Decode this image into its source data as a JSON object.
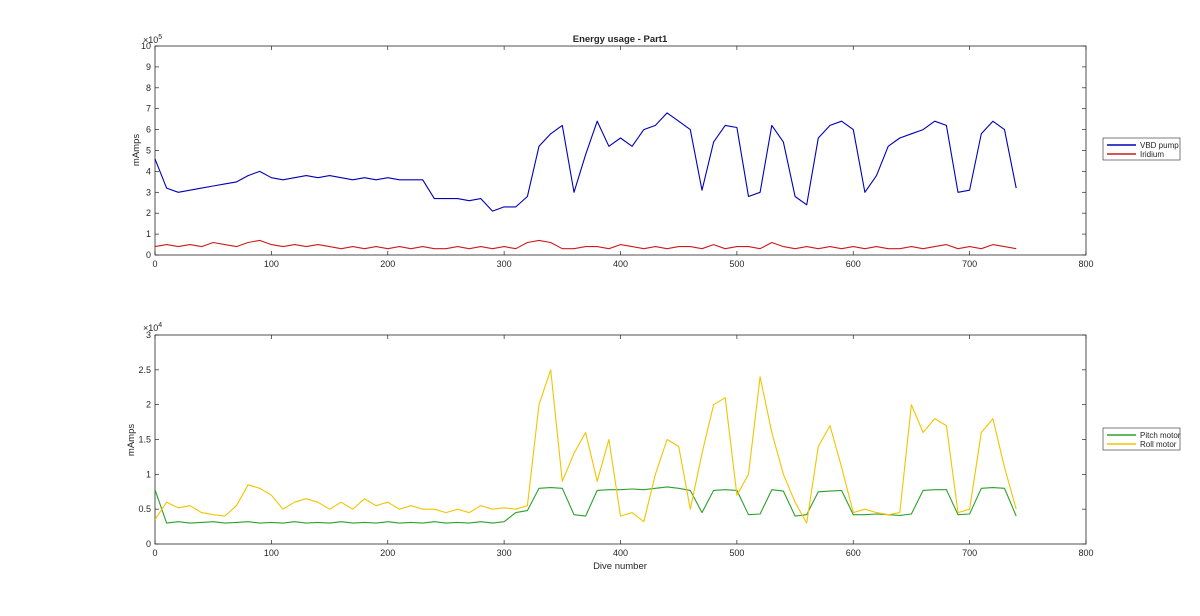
{
  "colors": {
    "vbd": "#0000b8",
    "iridium": "#cc1a1a",
    "pitch": "#2ca02c",
    "roll": "#f2c400",
    "axis": "#262626"
  },
  "chart_data": [
    {
      "type": "line",
      "title": "Energy usage - Part1",
      "xlabel": "",
      "ylabel": "mAmps",
      "xlim": [
        0,
        800
      ],
      "ylim": [
        0,
        1000000
      ],
      "x_ticks": [
        0,
        100,
        200,
        300,
        400,
        500,
        600,
        700,
        800
      ],
      "y_ticks": [
        0,
        1,
        2,
        3,
        4,
        5,
        6,
        7,
        8,
        9,
        10
      ],
      "y_multiplier": "×10",
      "y_exponent": "5",
      "legend_position": "right",
      "grid": false,
      "x": [
        0,
        10,
        20,
        30,
        40,
        50,
        60,
        70,
        80,
        90,
        100,
        110,
        120,
        130,
        140,
        150,
        160,
        170,
        180,
        190,
        200,
        210,
        220,
        230,
        240,
        250,
        260,
        270,
        280,
        290,
        300,
        310,
        320,
        330,
        340,
        350,
        360,
        370,
        380,
        390,
        400,
        410,
        420,
        430,
        440,
        450,
        460,
        470,
        480,
        490,
        500,
        510,
        520,
        530,
        540,
        550,
        560,
        570,
        580,
        590,
        600,
        610,
        620,
        630,
        640,
        650,
        660,
        670,
        680,
        690,
        700,
        710,
        720,
        730,
        740
      ],
      "series": [
        {
          "name": "VBD pump",
          "values": [
            460000,
            320000,
            300000,
            310000,
            320000,
            330000,
            340000,
            350000,
            380000,
            400000,
            370000,
            360000,
            370000,
            380000,
            370000,
            380000,
            370000,
            360000,
            370000,
            360000,
            370000,
            360000,
            360000,
            360000,
            270000,
            270000,
            270000,
            260000,
            270000,
            210000,
            230000,
            230000,
            280000,
            520000,
            580000,
            620000,
            300000,
            480000,
            640000,
            520000,
            560000,
            520000,
            600000,
            620000,
            680000,
            640000,
            600000,
            310000,
            540000,
            620000,
            610000,
            280000,
            300000,
            620000,
            540000,
            280000,
            240000,
            560000,
            620000,
            640000,
            600000,
            300000,
            380000,
            520000,
            560000,
            580000,
            600000,
            640000,
            620000,
            300000,
            310000,
            580000,
            640000,
            600000,
            320000
          ]
        },
        {
          "name": "Iridium",
          "values": [
            40000,
            50000,
            40000,
            50000,
            40000,
            60000,
            50000,
            40000,
            60000,
            70000,
            50000,
            40000,
            50000,
            40000,
            50000,
            40000,
            30000,
            40000,
            30000,
            40000,
            30000,
            40000,
            30000,
            40000,
            30000,
            30000,
            40000,
            30000,
            40000,
            30000,
            40000,
            30000,
            60000,
            70000,
            60000,
            30000,
            30000,
            40000,
            40000,
            30000,
            50000,
            40000,
            30000,
            40000,
            30000,
            40000,
            40000,
            30000,
            50000,
            30000,
            40000,
            40000,
            30000,
            60000,
            40000,
            30000,
            40000,
            30000,
            40000,
            30000,
            40000,
            30000,
            40000,
            30000,
            30000,
            40000,
            30000,
            40000,
            50000,
            30000,
            40000,
            30000,
            50000,
            40000,
            30000
          ]
        }
      ]
    },
    {
      "type": "line",
      "title": "",
      "xlabel": "Dive number",
      "ylabel": "mAmps",
      "xlim": [
        0,
        800
      ],
      "ylim": [
        0,
        30000
      ],
      "x_ticks": [
        0,
        100,
        200,
        300,
        400,
        500,
        600,
        700,
        800
      ],
      "y_ticks": [
        0,
        0.5,
        1,
        1.5,
        2,
        2.5,
        3
      ],
      "y_multiplier": "×10",
      "y_exponent": "4",
      "legend_position": "right",
      "grid": false,
      "x": [
        0,
        10,
        20,
        30,
        40,
        50,
        60,
        70,
        80,
        90,
        100,
        110,
        120,
        130,
        140,
        150,
        160,
        170,
        180,
        190,
        200,
        210,
        220,
        230,
        240,
        250,
        260,
        270,
        280,
        290,
        300,
        310,
        320,
        330,
        340,
        350,
        360,
        370,
        380,
        390,
        400,
        410,
        420,
        430,
        440,
        450,
        460,
        470,
        480,
        490,
        500,
        510,
        520,
        530,
        540,
        550,
        560,
        570,
        580,
        590,
        600,
        610,
        620,
        630,
        640,
        650,
        660,
        670,
        680,
        690,
        700,
        710,
        720,
        730,
        740
      ],
      "series": [
        {
          "name": "Pitch motor",
          "values": [
            7800,
            3000,
            3200,
            3000,
            3100,
            3200,
            3000,
            3100,
            3200,
            3000,
            3100,
            3000,
            3200,
            3000,
            3100,
            3000,
            3200,
            3000,
            3100,
            3000,
            3200,
            3000,
            3100,
            3000,
            3200,
            3000,
            3100,
            3000,
            3200,
            3000,
            3200,
            4500,
            4800,
            8000,
            8100,
            8000,
            4200,
            4000,
            7700,
            7800,
            7800,
            7900,
            7800,
            8000,
            8200,
            8000,
            7700,
            4500,
            7700,
            7800,
            7700,
            4200,
            4300,
            7800,
            7600,
            4000,
            4200,
            7500,
            7600,
            7700,
            4200,
            4200,
            4300,
            4200,
            4100,
            4300,
            7700,
            7800,
            7800,
            4200,
            4300,
            8000,
            8100,
            8000,
            4000
          ]
        },
        {
          "name": "Roll motor",
          "values": [
            3500,
            6000,
            5200,
            5500,
            4500,
            4200,
            4000,
            5500,
            8500,
            8000,
            7000,
            5000,
            6000,
            6500,
            6000,
            5000,
            6000,
            5000,
            6500,
            5500,
            6000,
            5000,
            5500,
            5000,
            5000,
            4500,
            5000,
            4500,
            5500,
            5000,
            5200,
            5000,
            5500,
            20000,
            25000,
            9000,
            13000,
            16000,
            9000,
            15000,
            4000,
            4500,
            3200,
            10000,
            15000,
            14000,
            5000,
            13000,
            20000,
            21000,
            7000,
            10000,
            24000,
            16000,
            10000,
            6000,
            3000,
            14000,
            17000,
            11000,
            4500,
            5000,
            4500,
            4200,
            4500,
            20000,
            16000,
            18000,
            17000,
            4500,
            5000,
            16000,
            18000,
            11000,
            5000
          ]
        }
      ]
    }
  ]
}
